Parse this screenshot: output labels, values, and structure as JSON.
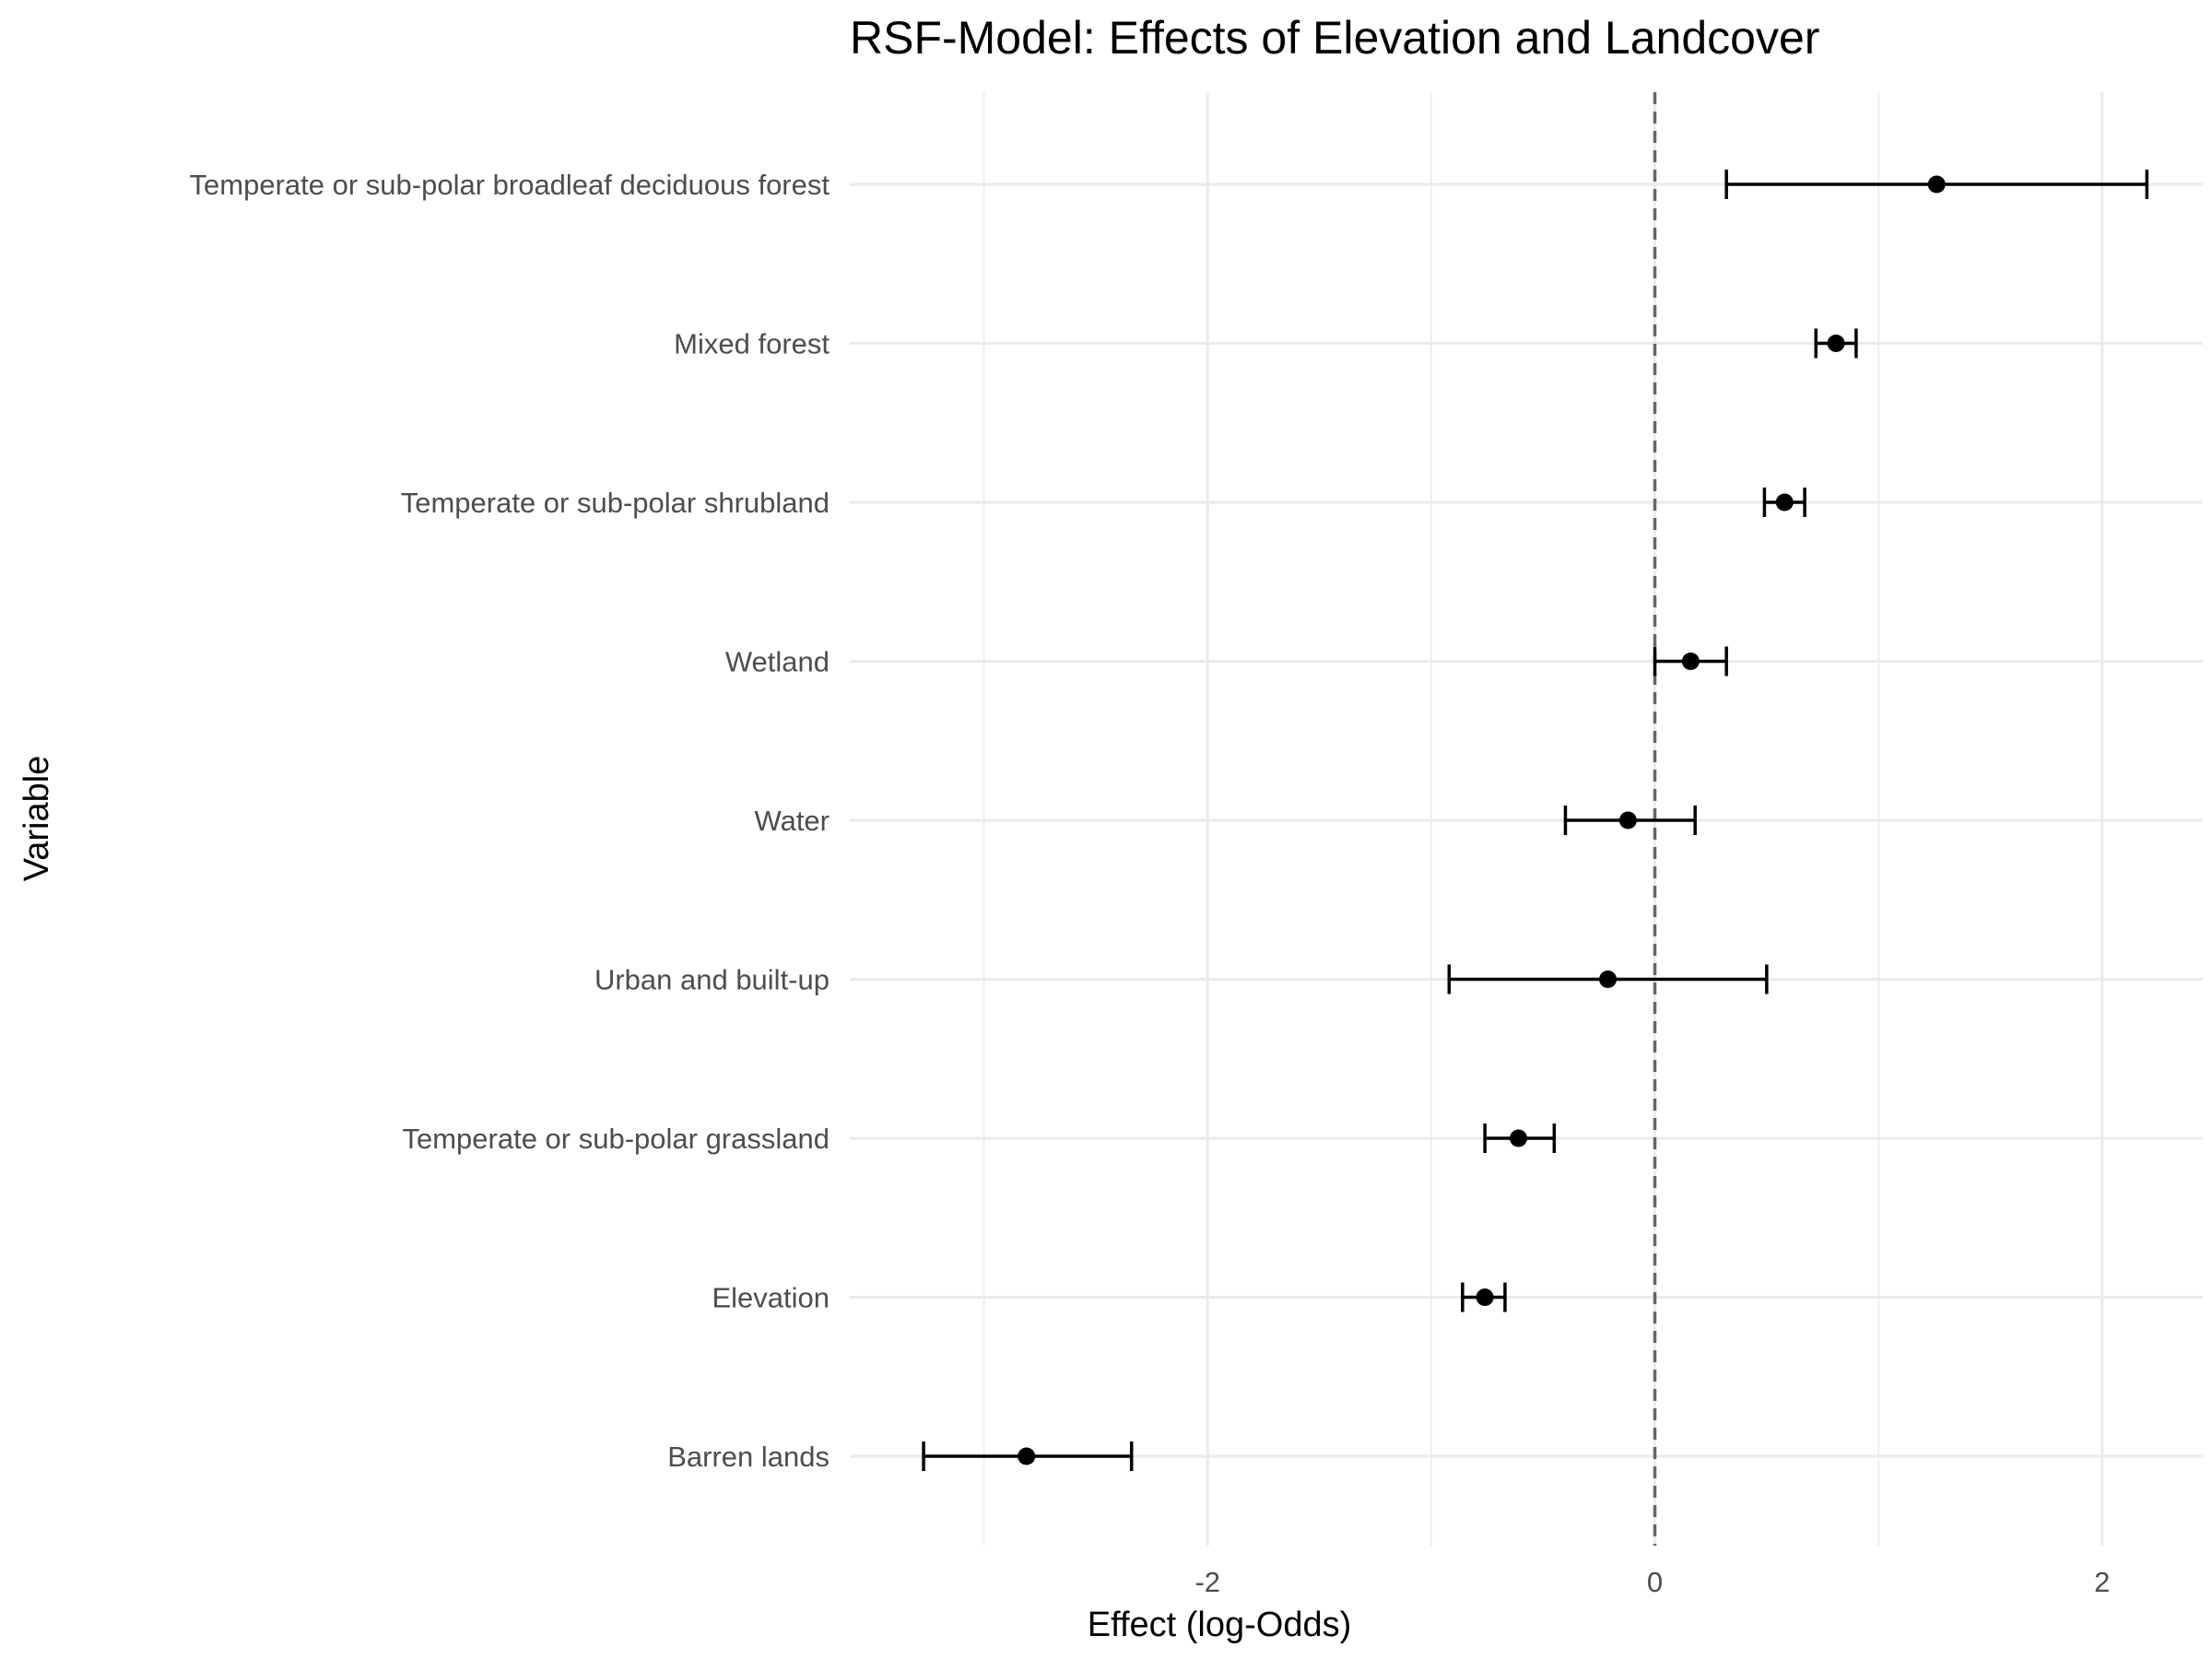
{
  "chart_data": {
    "type": "scatter",
    "title": "RSF-Model: Effects of Elevation and Landcover",
    "xlabel": "Effect (log-Odds)",
    "ylabel": "Variable",
    "xlim": [
      -3.6,
      2.45
    ],
    "x_ticks": [
      -2,
      0,
      2
    ],
    "x_tick_labels": [
      "-2",
      "0",
      "2"
    ],
    "reference_line": {
      "x": 0,
      "style": "dashed"
    },
    "grid": true,
    "categories": [
      "Temperate or sub-polar broadleaf deciduous forest",
      "Mixed forest",
      "Temperate or sub-polar shrubland",
      "Wetland",
      "Water",
      "Urban and built-up",
      "Temperate or sub-polar grassland",
      "Elevation",
      "Barren lands"
    ],
    "series": [
      {
        "estimate": [
          1.26,
          0.81,
          0.58,
          0.16,
          -0.12,
          -0.21,
          -0.61,
          -0.76,
          -2.81
        ],
        "lower": [
          0.32,
          0.72,
          0.49,
          0.0,
          -0.4,
          -0.92,
          -0.76,
          -0.86,
          -3.27
        ],
        "upper": [
          2.2,
          0.9,
          0.67,
          0.32,
          0.18,
          0.5,
          -0.45,
          -0.67,
          -2.34
        ]
      }
    ],
    "colors": {
      "point": "#000000",
      "errorbar": "#000000",
      "grid": "#ebebeb",
      "refline": "#666666"
    }
  }
}
